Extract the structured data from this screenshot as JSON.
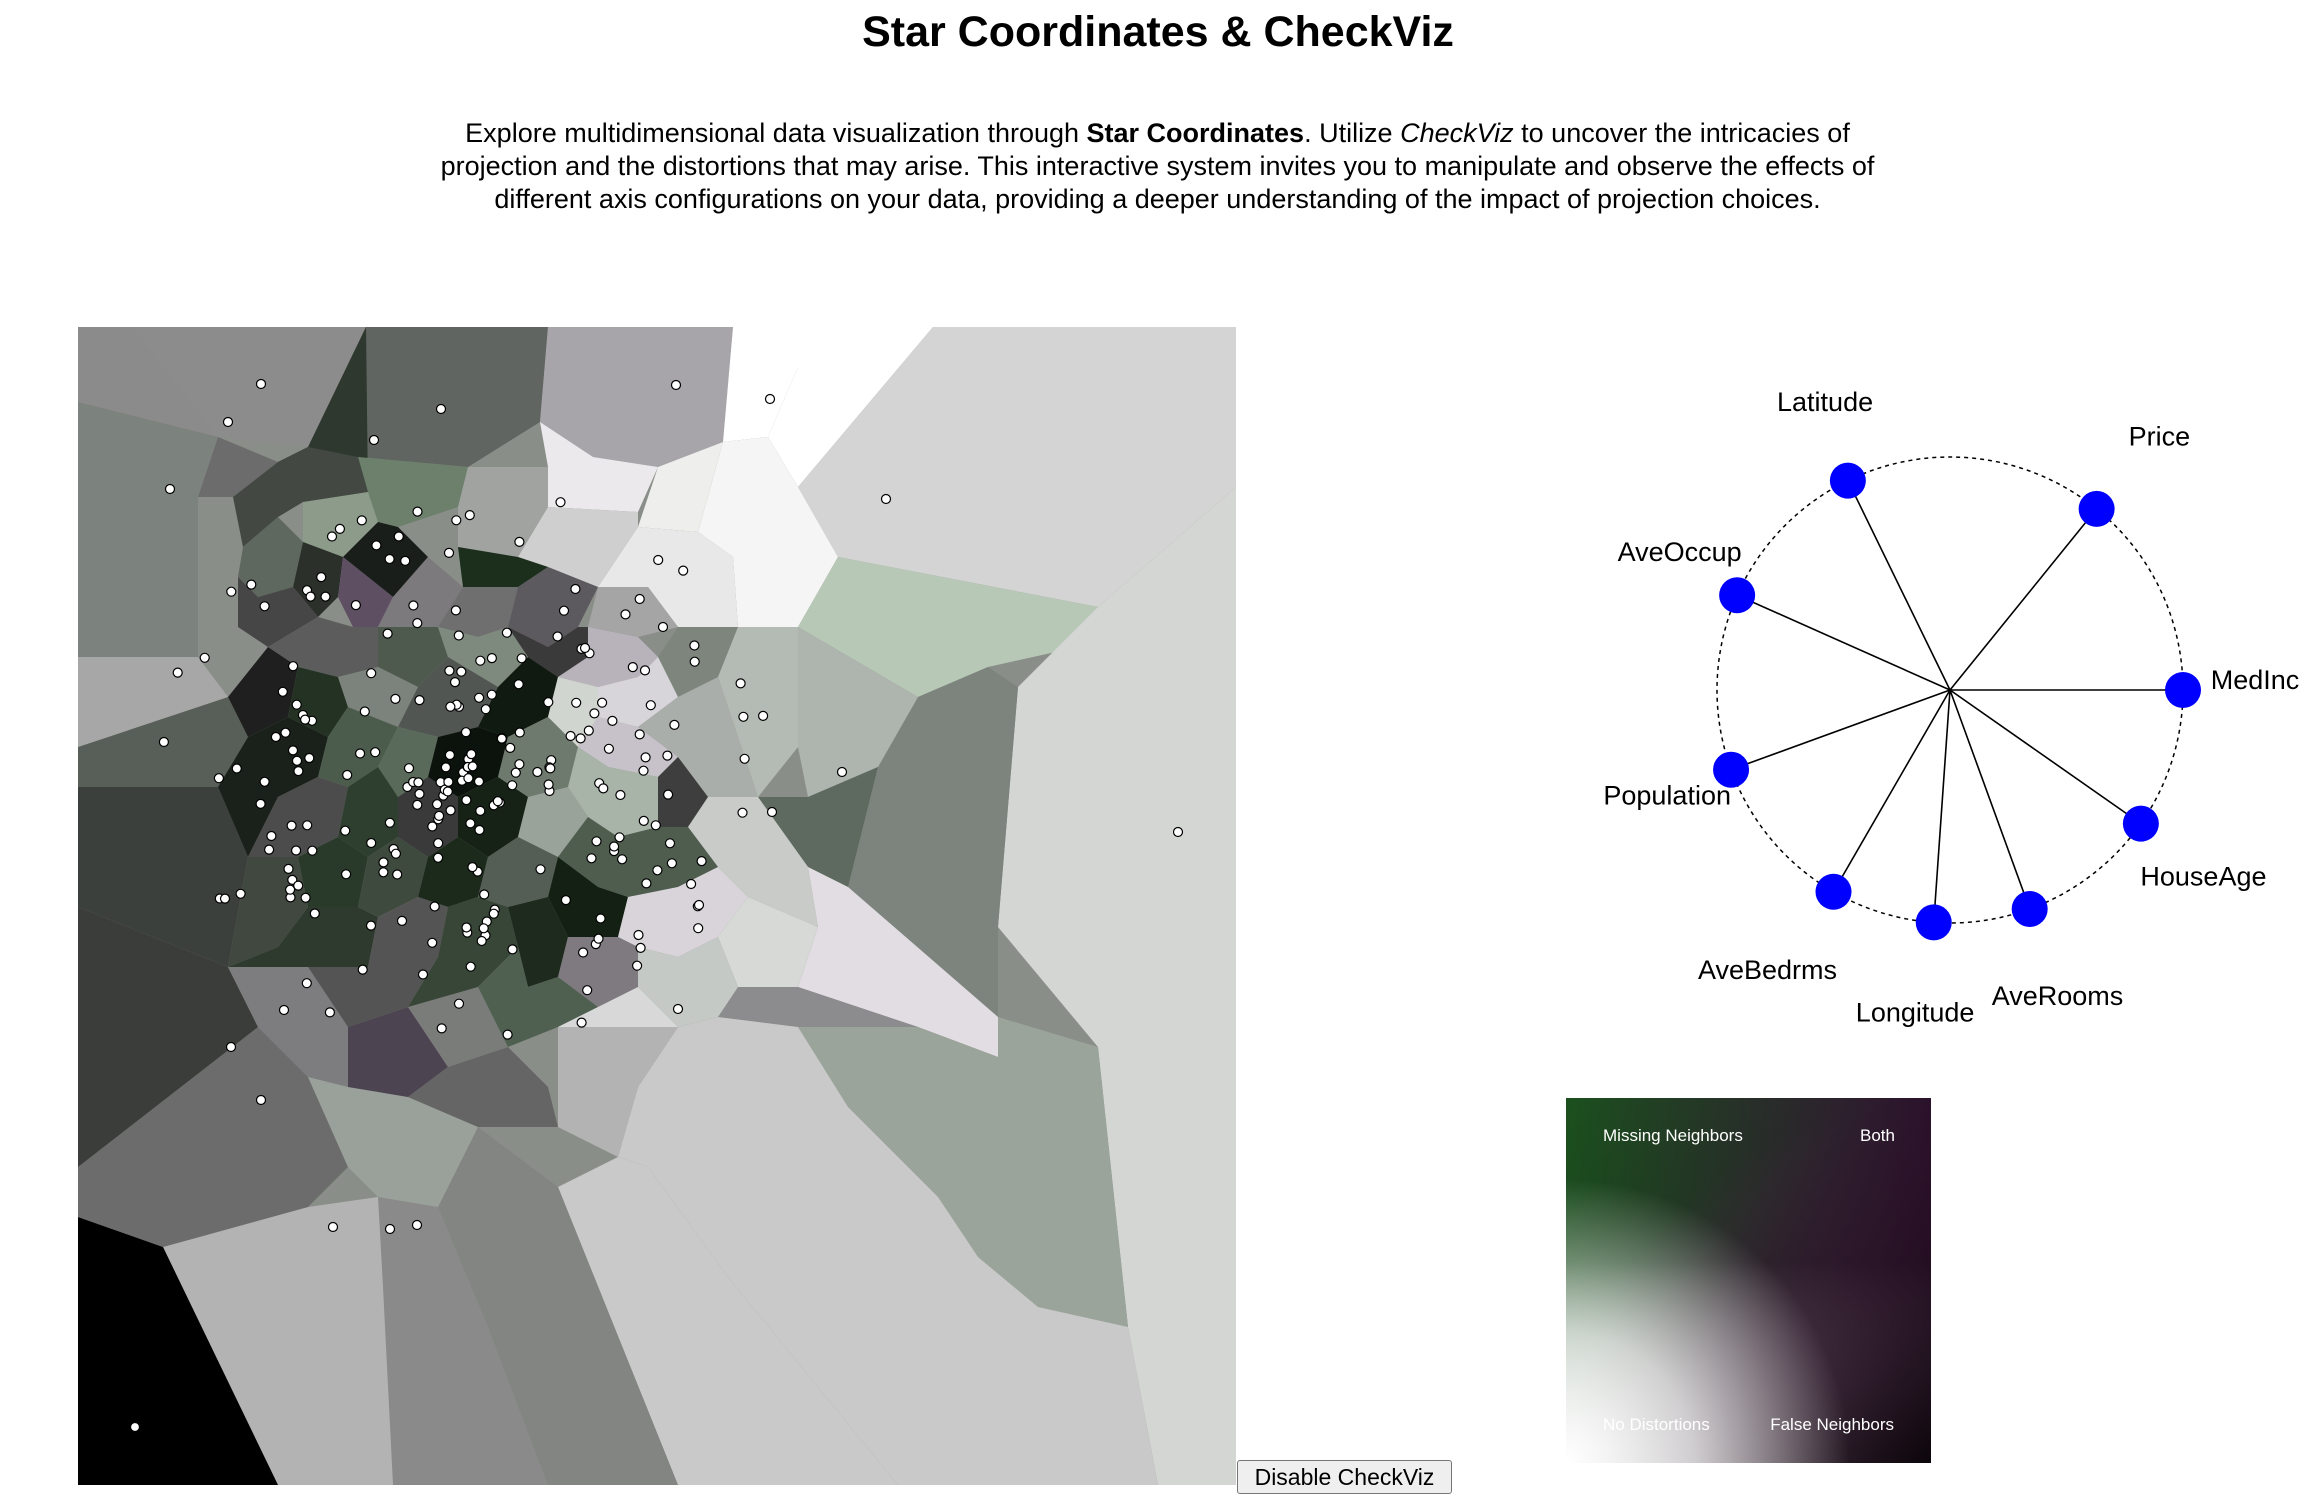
{
  "page": {
    "title": "Star Coordinates & CheckViz",
    "description": {
      "before_bold": "Explore multidimensional data visualization through ",
      "bold": "Star Coordinates",
      "middle": ". Utilize ",
      "italic": "CheckViz",
      "after": " to uncover the intricacies of projection and the distortions that may arise. This interactive system invites you to manipulate and observe the effects of different axis configurations on your data, providing a deeper understanding of the impact of projection choices."
    }
  },
  "star_coordinates": {
    "handle_color": "#0000ff",
    "axes": [
      {
        "name": "Latitude",
        "angle_deg": 116
      },
      {
        "name": "Price",
        "angle_deg": 51
      },
      {
        "name": "AveOccup",
        "angle_deg": 156
      },
      {
        "name": "MedInc",
        "angle_deg": 0
      },
      {
        "name": "Population",
        "angle_deg": 200
      },
      {
        "name": "HouseAge",
        "angle_deg": 325
      },
      {
        "name": "AveBedrms",
        "angle_deg": 240
      },
      {
        "name": "Longitude",
        "angle_deg": 266
      },
      {
        "name": "AveRooms",
        "angle_deg": 290
      }
    ]
  },
  "legend": {
    "top_left": "Missing Neighbors",
    "top_right": "Both",
    "bottom_left": "No Distortions",
    "bottom_right": "False Neighbors",
    "colors": {
      "missing": "#1b501e",
      "false": "#6e2864",
      "none": "#ffffff",
      "both": "#000000"
    }
  },
  "controls": {
    "toggle_label": "Disable CheckViz"
  }
}
